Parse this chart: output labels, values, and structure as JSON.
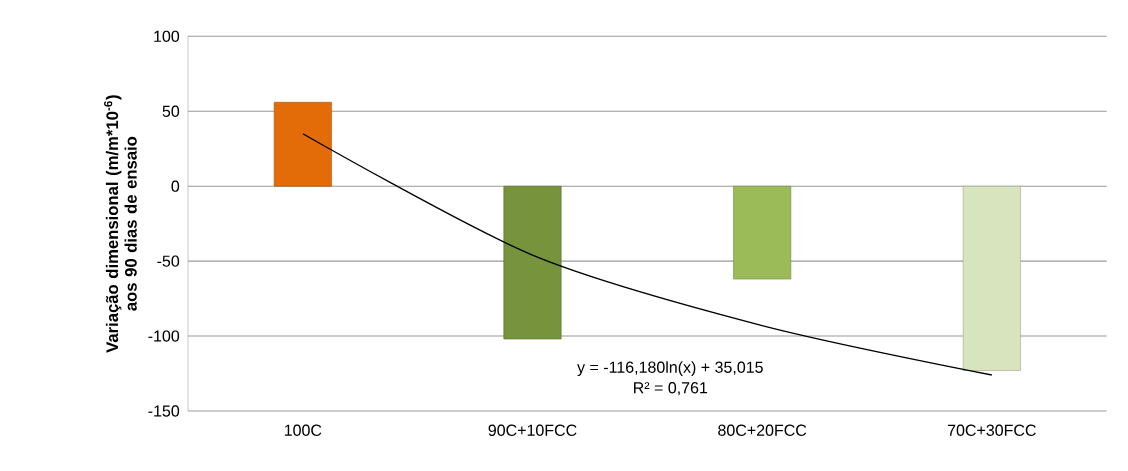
{
  "chart_data": {
    "type": "bar",
    "ylabel": "**Variação dimensional (m/m*10$^{-6}$) aos 90 dias de ensaio**",
    "categories": [
      "100C",
      "90C+10FCC",
      "80C+20FCC",
      "70C+30FCC"
    ],
    "series": [
      {
        "colors": [
          "#e36c09",
          "#77933c",
          "#9bbb59",
          "#d7e4bd"
        ],
        "values": [
          56,
          -102,
          -62,
          -123
        ]
      },
      {
        "type": "line",
        "color": "#000000",
        "values": [
          35,
          -46,
          -93,
          -126
        ]
      }
    ],
    "annotations": [
      "y = -116,180ln(x) + 35,015",
      "R² = 0,761"
    ],
    "ylim": [
      -150,
      100
    ],
    "yticks": [
      -150,
      -100,
      -50,
      0,
      50,
      100
    ],
    "grid": "y"
  }
}
